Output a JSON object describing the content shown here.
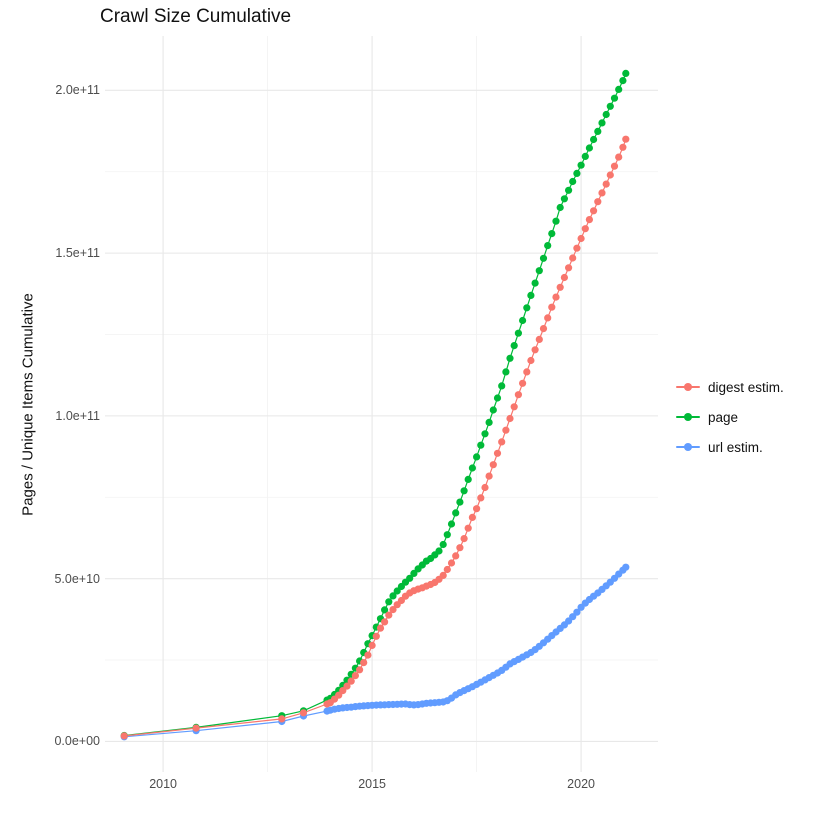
{
  "chart_data": {
    "type": "scatter",
    "title": "Crawl Size Cumulative",
    "xlabel": "",
    "ylabel": "Pages / Unique Items Cumulative",
    "value_unit": "1e9 (values below are in billions of pages / unique items)",
    "grid": true,
    "legend_position": "right",
    "xlim": [
      2008.61,
      2021.84
    ],
    "ylim_e9": [
      -9.4,
      216.7
    ],
    "x_ticks": [
      {
        "value": 2010,
        "label": "2010"
      },
      {
        "value": 2015,
        "label": "2015"
      },
      {
        "value": 2020,
        "label": "2020"
      }
    ],
    "x_minor": [
      2012.5,
      2017.5
    ],
    "y_ticks": [
      {
        "value_e9": 0,
        "label": "0.0e+00"
      },
      {
        "value_e9": 50,
        "label": "5.0e+10"
      },
      {
        "value_e9": 100,
        "label": "1.0e+11"
      },
      {
        "value_e9": 150,
        "label": "1.5e+11"
      },
      {
        "value_e9": 200,
        "label": "2.0e+11"
      }
    ],
    "y_minor_e9": [
      25,
      75,
      125,
      175
    ],
    "draw_order": [
      1,
      2,
      0
    ],
    "series": [
      {
        "name": "digest estim.",
        "color": "#F8766D",
        "points": [
          [
            2009.07,
            1.7
          ],
          [
            2010.79,
            4.1
          ],
          [
            2012.84,
            6.9
          ],
          [
            2013.36,
            8.8
          ],
          [
            2013.92,
            11.5
          ],
          [
            2014.0,
            11.9
          ],
          [
            2014.1,
            13.0
          ],
          [
            2014.2,
            14.2
          ],
          [
            2014.3,
            15.6
          ],
          [
            2014.4,
            17.0
          ],
          [
            2014.5,
            18.5
          ],
          [
            2014.6,
            20.2
          ],
          [
            2014.7,
            22.0
          ],
          [
            2014.8,
            24.2
          ],
          [
            2014.9,
            26.5
          ],
          [
            2015.0,
            29.5
          ],
          [
            2015.1,
            32.3
          ],
          [
            2015.2,
            34.8
          ],
          [
            2015.3,
            36.7
          ],
          [
            2015.4,
            38.8
          ],
          [
            2015.5,
            40.5
          ],
          [
            2015.6,
            42.0
          ],
          [
            2015.7,
            43.3
          ],
          [
            2015.8,
            44.6
          ],
          [
            2015.9,
            45.6
          ],
          [
            2016.0,
            46.3
          ],
          [
            2016.1,
            46.8
          ],
          [
            2016.2,
            47.2
          ],
          [
            2016.3,
            47.7
          ],
          [
            2016.4,
            48.2
          ],
          [
            2016.5,
            48.8
          ],
          [
            2016.6,
            49.8
          ],
          [
            2016.7,
            51.0
          ],
          [
            2016.8,
            52.8
          ],
          [
            2016.9,
            54.8
          ],
          [
            2017.0,
            57.0
          ],
          [
            2017.1,
            59.5
          ],
          [
            2017.2,
            62.3
          ],
          [
            2017.3,
            65.5
          ],
          [
            2017.4,
            68.8
          ],
          [
            2017.5,
            71.5
          ],
          [
            2017.6,
            74.8
          ],
          [
            2017.7,
            78.0
          ],
          [
            2017.8,
            81.5
          ],
          [
            2017.9,
            85.0
          ],
          [
            2018.0,
            88.5
          ],
          [
            2018.1,
            92.0
          ],
          [
            2018.2,
            95.6
          ],
          [
            2018.3,
            99.2
          ],
          [
            2018.4,
            102.8
          ],
          [
            2018.5,
            106.5
          ],
          [
            2018.6,
            110.0
          ],
          [
            2018.7,
            113.5
          ],
          [
            2018.8,
            117.0
          ],
          [
            2018.9,
            120.3
          ],
          [
            2019.0,
            123.5
          ],
          [
            2019.1,
            126.8
          ],
          [
            2019.2,
            130.1
          ],
          [
            2019.3,
            133.4
          ],
          [
            2019.4,
            136.5
          ],
          [
            2019.5,
            139.5
          ],
          [
            2019.6,
            142.5
          ],
          [
            2019.7,
            145.5
          ],
          [
            2019.8,
            148.5
          ],
          [
            2019.9,
            151.5
          ],
          [
            2020.0,
            154.5
          ],
          [
            2020.1,
            157.5
          ],
          [
            2020.2,
            160.3
          ],
          [
            2020.3,
            163.0
          ],
          [
            2020.4,
            165.8
          ],
          [
            2020.5,
            168.5
          ],
          [
            2020.6,
            171.2
          ],
          [
            2020.7,
            174.0
          ],
          [
            2020.8,
            176.7
          ],
          [
            2020.9,
            179.5
          ],
          [
            2021.0,
            182.5
          ],
          [
            2021.07,
            185.0
          ]
        ]
      },
      {
        "name": "page",
        "color": "#00BA38",
        "points": [
          [
            2009.07,
            1.8
          ],
          [
            2010.79,
            4.3
          ],
          [
            2012.84,
            7.9
          ],
          [
            2013.36,
            9.4
          ],
          [
            2013.92,
            12.7
          ],
          [
            2014.0,
            13.2
          ],
          [
            2014.1,
            14.4
          ],
          [
            2014.2,
            15.7
          ],
          [
            2014.3,
            17.2
          ],
          [
            2014.4,
            18.8
          ],
          [
            2014.5,
            20.6
          ],
          [
            2014.6,
            22.5
          ],
          [
            2014.7,
            24.7
          ],
          [
            2014.8,
            27.3
          ],
          [
            2014.9,
            30.0
          ],
          [
            2015.0,
            32.5
          ],
          [
            2015.1,
            35.1
          ],
          [
            2015.2,
            37.7
          ],
          [
            2015.3,
            40.4
          ],
          [
            2015.4,
            42.9
          ],
          [
            2015.5,
            44.7
          ],
          [
            2015.6,
            46.2
          ],
          [
            2015.7,
            47.6
          ],
          [
            2015.8,
            48.9
          ],
          [
            2015.9,
            50.1
          ],
          [
            2016.0,
            51.6
          ],
          [
            2016.1,
            53.0
          ],
          [
            2016.2,
            54.2
          ],
          [
            2016.3,
            55.4
          ],
          [
            2016.4,
            56.2
          ],
          [
            2016.5,
            57.3
          ],
          [
            2016.6,
            58.5
          ],
          [
            2016.7,
            60.5
          ],
          [
            2016.8,
            63.5
          ],
          [
            2016.9,
            66.8
          ],
          [
            2017.0,
            70.2
          ],
          [
            2017.1,
            73.5
          ],
          [
            2017.2,
            77.0
          ],
          [
            2017.3,
            80.5
          ],
          [
            2017.4,
            84.0
          ],
          [
            2017.5,
            87.4
          ],
          [
            2017.6,
            91.0
          ],
          [
            2017.7,
            94.5
          ],
          [
            2017.8,
            98.0
          ],
          [
            2017.9,
            101.8
          ],
          [
            2018.0,
            105.5
          ],
          [
            2018.1,
            109.2
          ],
          [
            2018.2,
            113.5
          ],
          [
            2018.3,
            117.7
          ],
          [
            2018.4,
            121.6
          ],
          [
            2018.5,
            125.4
          ],
          [
            2018.6,
            129.3
          ],
          [
            2018.7,
            133.2
          ],
          [
            2018.8,
            137.0
          ],
          [
            2018.9,
            140.8
          ],
          [
            2019.0,
            144.6
          ],
          [
            2019.1,
            148.4
          ],
          [
            2019.2,
            152.3
          ],
          [
            2019.3,
            156.0
          ],
          [
            2019.4,
            159.8
          ],
          [
            2019.5,
            164.0
          ],
          [
            2019.6,
            166.7
          ],
          [
            2019.7,
            169.3
          ],
          [
            2019.8,
            172.0
          ],
          [
            2019.9,
            174.5
          ],
          [
            2020.0,
            177.0
          ],
          [
            2020.1,
            179.7
          ],
          [
            2020.2,
            182.3
          ],
          [
            2020.3,
            184.9
          ],
          [
            2020.4,
            187.4
          ],
          [
            2020.5,
            190.0
          ],
          [
            2020.6,
            192.6
          ],
          [
            2020.7,
            195.1
          ],
          [
            2020.8,
            197.6
          ],
          [
            2020.9,
            200.3
          ],
          [
            2021.0,
            203.0
          ],
          [
            2021.07,
            205.2
          ]
        ]
      },
      {
        "name": "url estim.",
        "color": "#619CFF",
        "points": [
          [
            2009.07,
            1.4
          ],
          [
            2010.79,
            3.3
          ],
          [
            2012.84,
            6.1
          ],
          [
            2013.36,
            7.8
          ],
          [
            2013.92,
            9.3
          ],
          [
            2014.0,
            9.6
          ],
          [
            2014.1,
            9.9
          ],
          [
            2014.2,
            10.1
          ],
          [
            2014.3,
            10.3
          ],
          [
            2014.4,
            10.4
          ],
          [
            2014.5,
            10.5
          ],
          [
            2014.6,
            10.7
          ],
          [
            2014.7,
            10.8
          ],
          [
            2014.8,
            10.9
          ],
          [
            2014.9,
            11.0
          ],
          [
            2015.0,
            11.1
          ],
          [
            2015.1,
            11.15
          ],
          [
            2015.2,
            11.2
          ],
          [
            2015.3,
            11.25
          ],
          [
            2015.4,
            11.3
          ],
          [
            2015.5,
            11.35
          ],
          [
            2015.6,
            11.4
          ],
          [
            2015.7,
            11.45
          ],
          [
            2015.8,
            11.5
          ],
          [
            2015.9,
            11.3
          ],
          [
            2016.0,
            11.2
          ],
          [
            2016.1,
            11.3
          ],
          [
            2016.2,
            11.5
          ],
          [
            2016.3,
            11.7
          ],
          [
            2016.4,
            11.8
          ],
          [
            2016.5,
            11.9
          ],
          [
            2016.6,
            12.0
          ],
          [
            2016.7,
            12.1
          ],
          [
            2016.8,
            12.5
          ],
          [
            2016.9,
            13.3
          ],
          [
            2017.0,
            14.3
          ],
          [
            2017.1,
            15.0
          ],
          [
            2017.2,
            15.6
          ],
          [
            2017.3,
            16.2
          ],
          [
            2017.4,
            16.8
          ],
          [
            2017.5,
            17.5
          ],
          [
            2017.6,
            18.2
          ],
          [
            2017.7,
            18.9
          ],
          [
            2017.8,
            19.6
          ],
          [
            2017.9,
            20.3
          ],
          [
            2018.0,
            21.0
          ],
          [
            2018.1,
            21.8
          ],
          [
            2018.2,
            22.8
          ],
          [
            2018.3,
            23.8
          ],
          [
            2018.4,
            24.5
          ],
          [
            2018.5,
            25.2
          ],
          [
            2018.6,
            25.9
          ],
          [
            2018.7,
            26.6
          ],
          [
            2018.8,
            27.3
          ],
          [
            2018.9,
            28.2
          ],
          [
            2019.0,
            29.2
          ],
          [
            2019.1,
            30.3
          ],
          [
            2019.2,
            31.4
          ],
          [
            2019.3,
            32.5
          ],
          [
            2019.4,
            33.6
          ],
          [
            2019.5,
            34.7
          ],
          [
            2019.6,
            35.8
          ],
          [
            2019.7,
            37.0
          ],
          [
            2019.8,
            38.3
          ],
          [
            2019.9,
            39.7
          ],
          [
            2020.0,
            41.2
          ],
          [
            2020.1,
            42.5
          ],
          [
            2020.2,
            43.6
          ],
          [
            2020.3,
            44.6
          ],
          [
            2020.4,
            45.6
          ],
          [
            2020.5,
            46.7
          ],
          [
            2020.6,
            47.8
          ],
          [
            2020.7,
            48.9
          ],
          [
            2020.8,
            50.1
          ],
          [
            2020.9,
            51.4
          ],
          [
            2021.0,
            52.6
          ],
          [
            2021.07,
            53.5
          ]
        ]
      }
    ],
    "style": {
      "grid_major_color": "#E8E8E8",
      "grid_minor_color": "#F2F2F2",
      "point_radius": 3.6,
      "line_width": 1.2
    }
  }
}
